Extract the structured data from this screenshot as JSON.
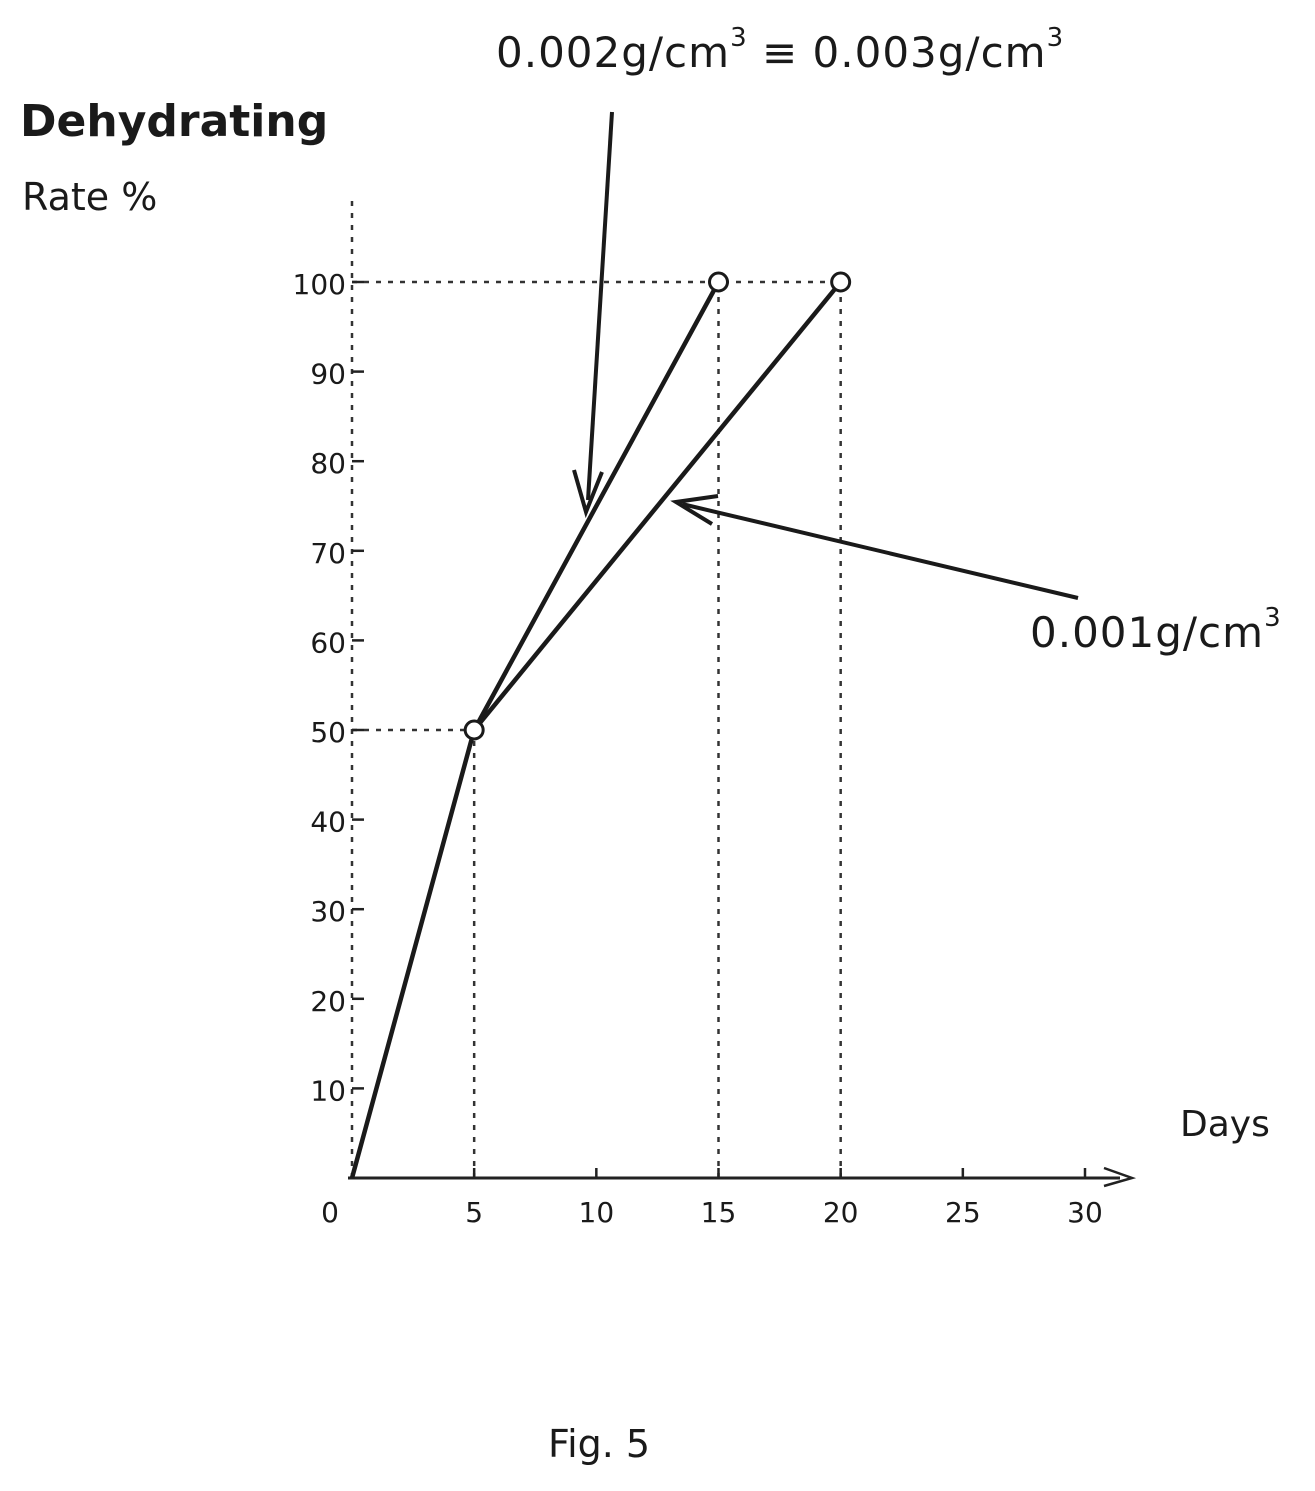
{
  "chart_data": {
    "type": "line",
    "xlabel": "Days",
    "ylabel_line1": "Dehydrating",
    "ylabel_line2": "Rate %",
    "xlim": [
      0,
      30
    ],
    "ylim": [
      0,
      100
    ],
    "x_ticks": [
      0,
      5,
      10,
      15,
      20,
      25,
      30
    ],
    "y_ticks": [
      10,
      20,
      30,
      40,
      50,
      60,
      70,
      80,
      90,
      100
    ],
    "series": [
      {
        "points": [
          [
            0,
            0
          ],
          [
            5,
            50
          ],
          [
            15,
            100
          ]
        ],
        "name": "0.002g/cm3 ≡ 0.003g/cm3"
      },
      {
        "points": [
          [
            5,
            50
          ],
          [
            20,
            100
          ]
        ],
        "name": "0.001g/cm3"
      }
    ],
    "guides": {
      "horizontal": [
        {
          "y": 100,
          "x_end": 20
        },
        {
          "y": 50,
          "x_end": 5
        }
      ],
      "vertical": [
        {
          "x": 5,
          "y_end": 50
        },
        {
          "x": 15,
          "y_end": 100
        },
        {
          "x": 20,
          "y_end": 100
        }
      ]
    },
    "annotations": {
      "top": {
        "part1": "0.002g/cm",
        "sup1": "3",
        "sep": "≡",
        "part2": "0.003g/cm",
        "sup2": "3"
      },
      "right": {
        "text": "0.001g/cm",
        "sup": "3"
      }
    }
  },
  "caption": "Fig.  5"
}
